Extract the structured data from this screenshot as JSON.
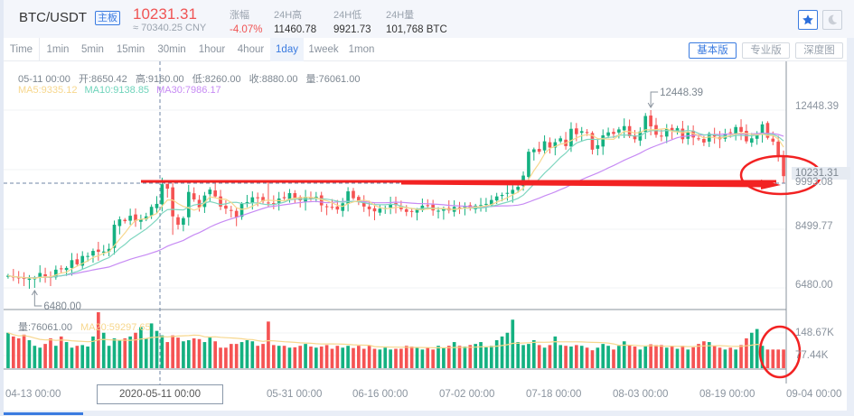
{
  "header": {
    "pair": "BTC/USDT",
    "board_badge": "主板",
    "last_price": "10231.31",
    "cny_price": "≈ 70340.25 CNY",
    "stats": [
      {
        "label": "涨幅",
        "value": "-4.07%",
        "negative": true
      },
      {
        "label": "24H高",
        "value": "11460.78"
      },
      {
        "label": "24H低",
        "value": "9921.73"
      },
      {
        "label": "24H量",
        "value": "101,768 BTC"
      }
    ],
    "favorite_icon": "star-icon",
    "theme_icon": "moon-icon"
  },
  "toolbar": {
    "intervals": [
      "Time",
      "1min",
      "5min",
      "15min",
      "30min",
      "1hour",
      "4hour",
      "1day",
      "1week",
      "1mon"
    ],
    "active_interval": "1day",
    "views": [
      "基本版",
      "专业版",
      "深度图"
    ],
    "active_view": "基本版"
  },
  "info": {
    "date": "05-11 00:00",
    "open": "开:8650.42",
    "high": "高:9160.00",
    "low": "低:8260.00",
    "close": "收:8880.00",
    "volume": "量:76061.00",
    "ma5": "MA5:9335.12",
    "ma10": "MA10:9138.85",
    "ma30": "MA30:7986.17"
  },
  "volume_info": {
    "volume": "量:76061.00",
    "ma20": "MA20:59297.65"
  },
  "colors": {
    "up": "#14b181",
    "down": "#f55353",
    "ma5": "#f7d78d",
    "ma10": "#7fd6c0",
    "ma30": "#c78bf4",
    "accent": "#3a7be0",
    "annotation": "#f22222"
  },
  "chart_data": {
    "type": "candlestick",
    "title": "BTC/USDT 1day",
    "y_axis_labels": [
      "12448.39",
      "10231.31",
      "9993.08",
      "8499.77",
      "6480.00"
    ],
    "volume_axis_labels": [
      "148.67K",
      "77.44K"
    ],
    "x_axis_labels": [
      "04-13 00:00",
      "05-11 00:00",
      "05-31 00:00",
      "06-16 00:00",
      "07-02 00:00",
      "07-18 00:00",
      "08-03 00:00",
      "08-19 00:00",
      "09-04 00:00"
    ],
    "crosshair_date": "2020-05-11 00:00",
    "max_marker": "12448.39",
    "min_marker": "6480.00",
    "current_price_label": "10231.31",
    "ylim": [
      6000,
      13200
    ],
    "close_series": [
      6890,
      6830,
      6800,
      6780,
      6790,
      6800,
      6980,
      6870,
      6820,
      7090,
      7110,
      7150,
      7410,
      7270,
      7550,
      7550,
      7720,
      7690,
      7700,
      7790,
      8600,
      8780,
      8720,
      8900,
      8730,
      8780,
      8880,
      9200,
      9300,
      9960,
      9810,
      8880,
      8600,
      8820,
      9700,
      9450,
      9180,
      9580,
      9780,
      9550,
      9210,
      9140,
      9080,
      8850,
      9300,
      9360,
      9520,
      9500,
      9390,
      9340,
      9320,
      9480,
      9490,
      9660,
      9500,
      9420,
      9530,
      9500,
      9540,
      9250,
      9200,
      9180,
      9110,
      9320,
      9720,
      9490,
      9380,
      9210,
      9120,
      9050,
      9140,
      9160,
      9280,
      9260,
      9120,
      9030,
      9050,
      9100,
      9240,
      9230,
      9080,
      9070,
      9130,
      9080,
      9200,
      9180,
      9210,
      9150,
      9240,
      9260,
      9300,
      9430,
      9550,
      9600,
      9670,
      9770,
      9870,
      10250,
      11050,
      11130,
      11050,
      11400,
      11190,
      11370,
      11500,
      11240,
      11820,
      11640,
      11740,
      11680,
      11120,
      11270,
      11600,
      11700,
      11650,
      11800,
      11910,
      11570,
      11470,
      11730,
      12250,
      11900,
      11620,
      11560,
      11820,
      11750,
      11840,
      11470,
      11710,
      11530,
      11480,
      11360,
      11660,
      11560,
      11470,
      11660,
      11680,
      11880,
      11720,
      11400,
      11500,
      11600,
      11970,
      11520,
      11390,
      10900,
      10231
    ],
    "volume_series": [
      95,
      85,
      80,
      90,
      75,
      60,
      55,
      65,
      80,
      60,
      85,
      70,
      55,
      60,
      62,
      58,
      85,
      150,
      95,
      60,
      80,
      75,
      80,
      85,
      95,
      110,
      80,
      120,
      100,
      88,
      70,
      88,
      82,
      72,
      75,
      80,
      78,
      70,
      82,
      72,
      55,
      55,
      65,
      65,
      70,
      75,
      72,
      60,
      65,
      125,
      62,
      60,
      60,
      55,
      56,
      60,
      65,
      58,
      55,
      58,
      62,
      52,
      60,
      55,
      60,
      54,
      60,
      52,
      60,
      52,
      50,
      55,
      50,
      52,
      52,
      60,
      58,
      55,
      50,
      55,
      50,
      60,
      55,
      60,
      70,
      60,
      58,
      62,
      65,
      70,
      56,
      60,
      75,
      85,
      95,
      130,
      70,
      62,
      65,
      75,
      62,
      55,
      62,
      85,
      62,
      60,
      58,
      62,
      60,
      55,
      48,
      55,
      65,
      60,
      50,
      60,
      72,
      62,
      58,
      50,
      58,
      64,
      62,
      62,
      55,
      60,
      52,
      60,
      50,
      56,
      65,
      72,
      70,
      60,
      55,
      50,
      55,
      50,
      62,
      80,
      95,
      105,
      60
    ],
    "ma_series": [
      "MA5",
      "MA10",
      "MA30"
    ],
    "volume_ma": "MA20"
  }
}
